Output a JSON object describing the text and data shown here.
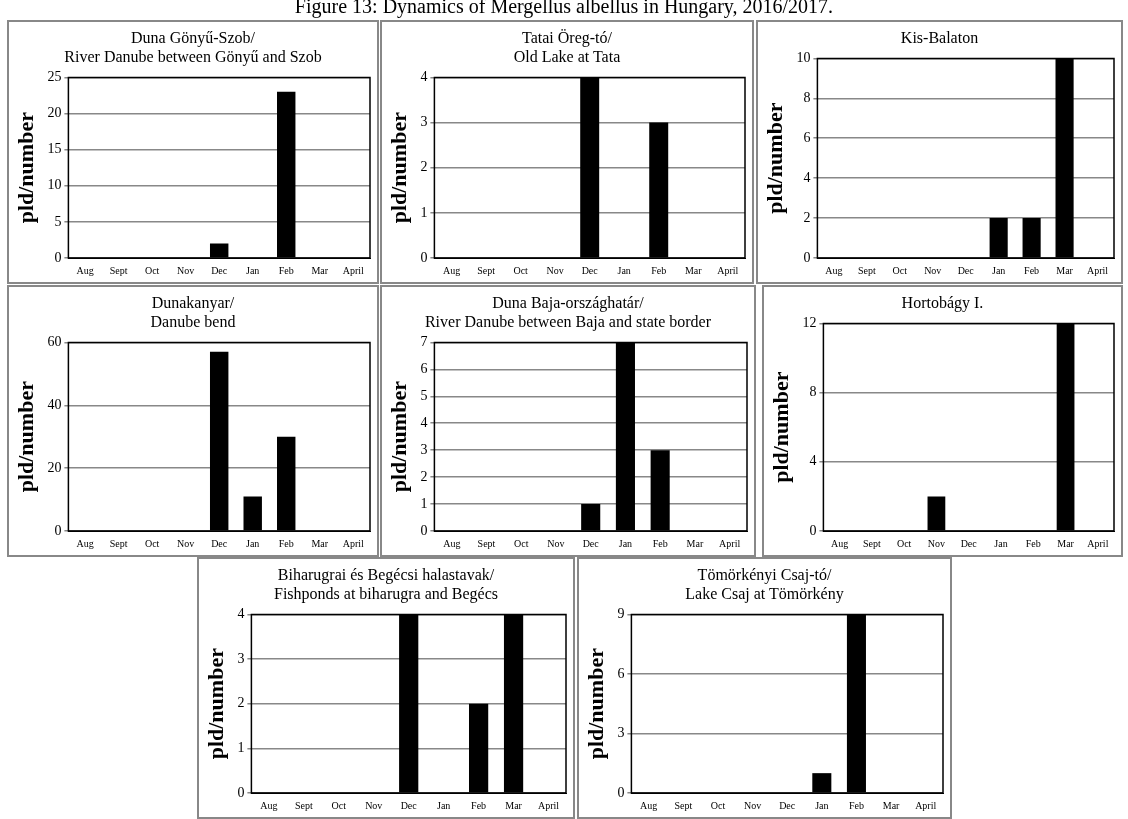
{
  "chart_data": [
    {
      "type": "other",
      "title": "Figure 13: Dynamics of Mergellus albellus in Hungary, 2016/2017."
    },
    {
      "type": "bar",
      "title": "Duna Gönyű-Szob/\nRiver Danube between Gönyű and Szob",
      "ylabel": "pld/number",
      "categories": [
        "Aug",
        "Sept",
        "Oct",
        "Nov",
        "Dec",
        "Jan",
        "Feb",
        "Mar",
        "April"
      ],
      "values": [
        0,
        0,
        0,
        0,
        2,
        0,
        23,
        0,
        0
      ],
      "color": "#000000",
      "ylim": [
        0,
        25
      ],
      "yticks": [
        0,
        5,
        10,
        15,
        20,
        25
      ],
      "grid": "y"
    },
    {
      "type": "bar",
      "title": "Tatai Öreg-tó/\nOld Lake at Tata",
      "ylabel": "pld/number",
      "categories": [
        "Aug",
        "Sept",
        "Oct",
        "Nov",
        "Dec",
        "Jan",
        "Feb",
        "Mar",
        "April"
      ],
      "values": [
        0,
        0,
        0,
        0,
        4,
        0,
        3,
        0,
        0
      ],
      "color": "#000000",
      "ylim": [
        0,
        4
      ],
      "yticks": [
        0,
        1,
        2,
        3,
        4
      ],
      "grid": "y"
    },
    {
      "type": "bar",
      "title": "Kis-Balaton",
      "ylabel": "pld/number",
      "categories": [
        "Aug",
        "Sept",
        "Oct",
        "Nov",
        "Dec",
        "Jan",
        "Feb",
        "Mar",
        "April"
      ],
      "values": [
        0,
        0,
        0,
        0,
        0,
        2,
        2,
        10,
        0
      ],
      "color": "#000000",
      "ylim": [
        0,
        10
      ],
      "yticks": [
        0,
        2,
        4,
        6,
        8,
        10
      ],
      "grid": "y"
    },
    {
      "type": "bar",
      "title": "Dunakanyar/\nDanube bend",
      "ylabel": "pld/number",
      "categories": [
        "Aug",
        "Sept",
        "Oct",
        "Nov",
        "Dec",
        "Jan",
        "Feb",
        "Mar",
        "April"
      ],
      "values": [
        0,
        0,
        0,
        0,
        57,
        11,
        30,
        0,
        0
      ],
      "color": "#000000",
      "ylim": [
        0,
        60
      ],
      "yticks": [
        0,
        20,
        40,
        60
      ],
      "grid": "y"
    },
    {
      "type": "bar",
      "title": "Duna Baja-országhatár/\nRiver Danube between Baja and state border",
      "ylabel": "pld/number",
      "categories": [
        "Aug",
        "Sept",
        "Oct",
        "Nov",
        "Dec",
        "Jan",
        "Feb",
        "Mar",
        "April"
      ],
      "values": [
        0,
        0,
        0,
        0,
        1,
        7,
        3,
        0,
        0
      ],
      "color": "#000000",
      "ylim": [
        0,
        7
      ],
      "yticks": [
        0,
        1,
        2,
        3,
        4,
        5,
        6,
        7
      ],
      "grid": "y"
    },
    {
      "type": "bar",
      "title": "Hortobágy I.",
      "ylabel": "pld/number",
      "categories": [
        "Aug",
        "Sept",
        "Oct",
        "Nov",
        "Dec",
        "Jan",
        "Feb",
        "Mar",
        "April"
      ],
      "values": [
        0,
        0,
        0,
        2,
        0,
        0,
        0,
        12,
        0
      ],
      "color": "#000000",
      "ylim": [
        0,
        12
      ],
      "yticks": [
        0,
        4,
        8,
        12
      ],
      "grid": "y"
    },
    {
      "type": "bar",
      "title": "Biharugrai és Begécsi halastavak/\nFishponds at biharugra and Begécs",
      "ylabel": "pld/number",
      "categories": [
        "Aug",
        "Sept",
        "Oct",
        "Nov",
        "Dec",
        "Jan",
        "Feb",
        "Mar",
        "April"
      ],
      "values": [
        0,
        0,
        0,
        0,
        4,
        0,
        2,
        4,
        0
      ],
      "color": "#000000",
      "ylim": [
        0,
        4
      ],
      "yticks": [
        0,
        1,
        2,
        3,
        4
      ],
      "grid": "y"
    },
    {
      "type": "bar",
      "title": "Tömörkényi Csaj-tó/\nLake Csaj at Tömörkény",
      "ylabel": "pld/number",
      "categories": [
        "Aug",
        "Sept",
        "Oct",
        "Nov",
        "Dec",
        "Jan",
        "Feb",
        "Mar",
        "April"
      ],
      "values": [
        0,
        0,
        0,
        0,
        0,
        1,
        9,
        0,
        0
      ],
      "color": "#000000",
      "ylim": [
        0,
        9
      ],
      "yticks": [
        0,
        3,
        6,
        9
      ],
      "grid": "y"
    }
  ]
}
